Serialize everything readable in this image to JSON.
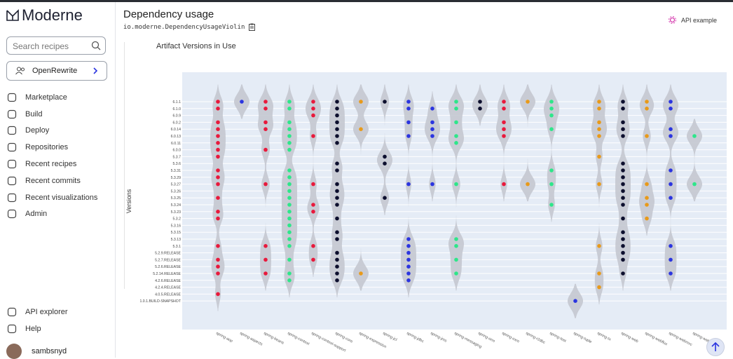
{
  "sidebar": {
    "brand": "Moderne",
    "search_placeholder": "Search recipes",
    "organization": "OpenRewrite",
    "nav": [
      "Marketplace",
      "Build",
      "Deploy",
      "Repositories",
      "Recent recipes",
      "Recent commits",
      "Recent visualizations",
      "Admin"
    ],
    "bottom_nav": [
      "API explorer",
      "Help"
    ],
    "user": "sambsnyd"
  },
  "header": {
    "title": "Dependency usage",
    "recipe_id": "io.moderne.DependencyUsageViolin",
    "api_example": "API example"
  },
  "chart_data": {
    "type": "violin",
    "title": "Artifact Versions in Use",
    "y_label": "Versions",
    "y_categories": [
      "6.1.1",
      "6.1.0",
      "6.0.9",
      "6.0.2",
      "6.0.14",
      "6.0.13",
      "6.0.11",
      "6.0.0",
      "5.3.7",
      "5.3.6",
      "5.3.31",
      "5.3.29",
      "5.3.27",
      "5.3.26",
      "5.3.25",
      "5.3.24",
      "5.3.23",
      "5.3.2",
      "5.3.16",
      "5.3.15",
      "5.3.13",
      "5.3.1",
      "5.2.9.RELEASE",
      "5.2.7.RELEASE",
      "5.2.6.RELEASE",
      "5.2.14.RELEASE",
      "4.2.6.RELEASE",
      "4.2.4.RELEASE",
      "4.0.5.RELEASE",
      "1.0.1.BUILD-SNAPSHOT"
    ],
    "violin_color": "#c4c8d0",
    "background": "#e5ecf6",
    "series": [
      {
        "name": "spring-aop",
        "color": "#e8193c",
        "values": [
          "6.1.1",
          "6.1.0",
          "6.0.2",
          "6.0.14",
          "6.0.13",
          "6.0.11",
          "6.0.0",
          "5.3.7",
          "5.3.31",
          "5.3.29",
          "5.3.27",
          "5.3.25",
          "5.3.23",
          "5.3.2",
          "5.3.1",
          "5.2.7.RELEASE",
          "5.2.6.RELEASE",
          "5.2.14.RELEASE",
          "4.0.5.RELEASE"
        ]
      },
      {
        "name": "spring-aspects",
        "color": "#2b35e0",
        "values": [
          "6.1.1"
        ]
      },
      {
        "name": "spring-beans",
        "color": "#e8193c",
        "values": [
          "6.1.1",
          "6.1.0",
          "6.0.2",
          "6.0.14",
          "6.0.0",
          "5.3.27",
          "5.3.1",
          "5.2.7.RELEASE",
          "5.2.14.RELEASE"
        ]
      },
      {
        "name": "spring-context",
        "color": "#2ee68a",
        "values": [
          "6.1.1",
          "6.1.0",
          "6.0.2",
          "6.0.14",
          "6.0.13",
          "6.0.11",
          "6.0.0",
          "5.3.31",
          "5.3.29",
          "5.3.27",
          "5.3.26",
          "5.3.25",
          "5.3.24",
          "5.3.23",
          "5.3.2",
          "5.3.16",
          "5.3.15",
          "5.3.13",
          "5.3.1",
          "5.2.7.RELEASE",
          "5.2.14.RELEASE",
          "4.2.6.RELEASE"
        ]
      },
      {
        "name": "spring-context-support",
        "color": "#e8193c",
        "values": [
          "6.1.1",
          "6.1.0",
          "6.0.9",
          "6.0.13",
          "5.3.27",
          "5.3.24",
          "5.3.23",
          "5.3.1",
          "5.2.7.RELEASE"
        ]
      },
      {
        "name": "spring-core",
        "color": "#0d0f2e",
        "values": [
          "6.1.1",
          "6.1.0",
          "6.0.9",
          "6.0.2",
          "6.0.14",
          "6.0.13",
          "6.0.11",
          "5.3.6",
          "5.3.31",
          "5.3.27",
          "5.3.26",
          "5.3.25",
          "5.3.24",
          "5.3.2",
          "5.3.15",
          "5.3.13",
          "5.2.9.RELEASE",
          "5.2.7.RELEASE",
          "5.2.6.RELEASE",
          "5.2.14.RELEASE",
          "4.2.6.RELEASE"
        ]
      },
      {
        "name": "spring-expression",
        "color": "#e89a1a",
        "values": [
          "6.1.1",
          "6.0.14",
          "5.2.14.RELEASE"
        ]
      },
      {
        "name": "spring-jcl",
        "color": "#0d0f2e",
        "values": [
          "6.1.1",
          "5.3.7",
          "5.3.6",
          "5.3.25"
        ]
      },
      {
        "name": "spring-jdbc",
        "color": "#2b35e0",
        "values": [
          "6.1.1",
          "6.1.0",
          "6.0.2",
          "6.0.13",
          "5.3.27",
          "5.3.13",
          "5.3.1",
          "5.2.9.RELEASE",
          "5.2.7.RELEASE",
          "5.2.6.RELEASE",
          "5.2.14.RELEASE",
          "4.2.6.RELEASE"
        ]
      },
      {
        "name": "spring-jms",
        "color": "#2b35e0",
        "values": [
          "6.1.0",
          "6.0.2",
          "6.0.14",
          "6.0.13",
          "5.3.27"
        ]
      },
      {
        "name": "spring-messaging",
        "color": "#2ee68a",
        "values": [
          "6.1.1",
          "6.1.0",
          "6.0.2",
          "6.0.13",
          "6.0.11",
          "5.3.27",
          "5.3.13",
          "5.3.1",
          "5.2.7.RELEASE",
          "5.2.14.RELEASE"
        ]
      },
      {
        "name": "spring-orm",
        "color": "#0d0f2e",
        "values": [
          "6.1.1",
          "6.1.0"
        ]
      },
      {
        "name": "spring-oxm",
        "color": "#e8193c",
        "values": [
          "6.1.1",
          "6.1.0",
          "6.0.2",
          "6.0.14",
          "6.0.13",
          "5.3.27"
        ]
      },
      {
        "name": "spring-r2dbc",
        "color": "#e89a1a",
        "values": [
          "6.1.1",
          "5.3.27"
        ]
      },
      {
        "name": "spring-test",
        "color": "#2ee68a",
        "values": [
          "6.1.1",
          "6.1.0",
          "6.0.9",
          "6.0.14",
          "5.3.31",
          "5.3.27",
          "5.3.24"
        ]
      },
      {
        "name": "spring-tuple",
        "color": "#2b35e0",
        "values": [
          "1.0.1.BUILD-SNAPSHOT"
        ]
      },
      {
        "name": "spring-tx",
        "color": "#e89a1a",
        "values": [
          "6.1.1",
          "6.1.0",
          "6.0.2",
          "6.0.14",
          "6.0.13",
          "5.3.7",
          "5.3.27",
          "5.3.1",
          "5.2.14.RELEASE",
          "4.2.4.RELEASE"
        ]
      },
      {
        "name": "spring-web",
        "color": "#0d0f2e",
        "values": [
          "6.1.1",
          "6.1.0",
          "6.0.2",
          "6.0.14",
          "6.0.13",
          "5.3.6",
          "5.3.31",
          "5.3.29",
          "5.3.27",
          "5.3.26",
          "5.3.25",
          "5.3.24",
          "5.3.2",
          "5.3.15",
          "5.3.13",
          "5.3.1",
          "5.2.9.RELEASE",
          "5.2.7.RELEASE",
          "5.2.14.RELEASE"
        ]
      },
      {
        "name": "spring-webflux",
        "color": "#e89a1a",
        "values": [
          "6.1.1",
          "6.1.0",
          "6.0.13",
          "5.3.27",
          "5.3.25",
          "5.3.24",
          "5.3.2"
        ]
      },
      {
        "name": "spring-webmvc",
        "color": "#2b35e0",
        "values": [
          "6.1.1",
          "6.1.0",
          "6.0.14",
          "6.0.13",
          "5.3.31",
          "5.3.27",
          "5.3.25",
          "5.3.1",
          "5.2.7.RELEASE",
          "5.2.14.RELEASE"
        ]
      },
      {
        "name": "spring-websocket",
        "color": "#2ee68a",
        "values": [
          "6.0.13",
          "5.3.27"
        ]
      }
    ]
  }
}
